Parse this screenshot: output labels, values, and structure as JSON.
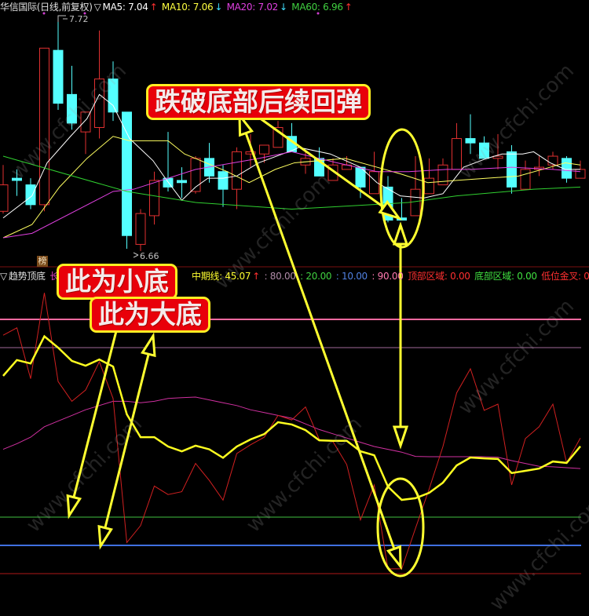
{
  "top_header": {
    "title": "华信国际(日线,前复权)",
    "marker": "▽",
    "ma5": {
      "label": "MA5: 7.04",
      "arrow": "↑",
      "color": "#ffffff",
      "arrow_color": "#ff3030"
    },
    "ma10": {
      "label": "MA10: 7.06",
      "arrow": "↓",
      "color": "#ffff40",
      "arrow_color": "#40e0ff"
    },
    "ma20": {
      "label": "MA20: 7.02",
      "arrow": "↓",
      "color": "#e040e0",
      "arrow_color": "#40e0ff"
    },
    "ma60": {
      "label": "MA60: 6.96",
      "arrow": "↑",
      "color": "#40d040",
      "arrow_color": "#ff3030"
    }
  },
  "price_labels": {
    "high": "7.72",
    "low": "6.66"
  },
  "badge": "榜",
  "lower_header": {
    "marker": "▽",
    "name": "趋势顶底",
    "long_label": "长",
    "mid_label": "中期线: 45.07",
    "mid_arrow": "↑",
    "l80": ": 80.00",
    "l20": ": 20.00",
    "l10": ": 10.00",
    "l90": ": 90.00",
    "top_zone": "顶部区域: 0.00",
    "bottom_zone": "底部区域: 0.00",
    "low_cross": "低位金叉: 0.00"
  },
  "annotations": {
    "rebound": "跌破底部后续回弹",
    "small_bottom": "此为小底",
    "big_bottom": "此为大底"
  },
  "watermark": "www.cfchi.com",
  "colors": {
    "up": "#e03030",
    "down": "#54ffff",
    "background": "#000000",
    "annotation": "#ffff30"
  },
  "chart_data": [
    {
      "type": "candlestick",
      "title": "华信国际(日线,前复权)",
      "ylim": [
        6.62,
        7.8
      ],
      "candles": [
        [
          6.84,
          7.05,
          6.83,
          6.96
        ],
        [
          6.99,
          7.03,
          6.91,
          6.98
        ],
        [
          6.96,
          6.99,
          6.85,
          6.87
        ],
        [
          6.87,
          7.58,
          6.84,
          7.58
        ],
        [
          7.57,
          7.72,
          7.3,
          7.33
        ],
        [
          7.37,
          7.5,
          7.21,
          7.24
        ],
        [
          7.2,
          7.29,
          7.1,
          7.29
        ],
        [
          7.22,
          7.66,
          7.17,
          7.44
        ],
        [
          7.44,
          7.52,
          7.25,
          7.29
        ],
        [
          7.29,
          7.29,
          6.67,
          6.73
        ],
        [
          6.69,
          6.85,
          6.66,
          6.83
        ],
        [
          6.82,
          7.02,
          6.78,
          6.98
        ],
        [
          6.99,
          7.2,
          6.93,
          6.95
        ],
        [
          6.98,
          7.04,
          6.9,
          6.97
        ],
        [
          6.93,
          7.09,
          6.92,
          7.08
        ],
        [
          7.08,
          7.15,
          6.97,
          7.0
        ],
        [
          7.02,
          7.05,
          6.86,
          6.94
        ],
        [
          6.94,
          7.13,
          6.85,
          7.11
        ],
        [
          7.1,
          7.19,
          7.04,
          7.11
        ],
        [
          7.1,
          7.14,
          7.06,
          7.14
        ],
        [
          7.13,
          7.25,
          7.13,
          7.22
        ],
        [
          7.18,
          7.24,
          7.11,
          7.11
        ],
        [
          7.05,
          7.11,
          7.01,
          7.08
        ],
        [
          7.08,
          7.13,
          7.0,
          7.0
        ],
        [
          6.98,
          7.08,
          6.98,
          7.05
        ],
        [
          7.03,
          7.09,
          7.03,
          7.05
        ],
        [
          7.04,
          7.04,
          6.9,
          6.95
        ],
        [
          6.92,
          7.11,
          6.92,
          7.02
        ],
        [
          6.95,
          7.0,
          6.79,
          6.8
        ],
        [
          6.81,
          6.9,
          6.8,
          6.8
        ],
        [
          6.82,
          7.09,
          6.82,
          6.94
        ],
        [
          6.92,
          7.08,
          6.92,
          6.99
        ],
        [
          6.96,
          7.08,
          6.96,
          7.05
        ],
        [
          7.03,
          7.24,
          7.03,
          7.17
        ],
        [
          7.17,
          7.28,
          7.1,
          7.15
        ],
        [
          7.15,
          7.18,
          7.08,
          7.08
        ],
        [
          7.08,
          7.19,
          7.03,
          7.09
        ],
        [
          7.11,
          7.14,
          6.92,
          6.95
        ],
        [
          6.94,
          7.07,
          6.94,
          7.03
        ],
        [
          7.03,
          7.09,
          7.0,
          7.04
        ],
        [
          7.05,
          7.11,
          7.03,
          7.09
        ],
        [
          7.08,
          7.09,
          6.97,
          6.99
        ],
        [
          6.99,
          7.07,
          6.99,
          7.03
        ]
      ],
      "candle_fields": [
        "open",
        "high",
        "low",
        "close"
      ],
      "series": [
        {
          "name": "MA5",
          "color": "#ffffff",
          "points": [
            [
              0,
              6.81
            ],
            [
              2.1,
              6.91
            ],
            [
              3.2,
              7.06
            ],
            [
              4.9,
              7.18
            ],
            [
              6.1,
              7.26
            ],
            [
              7,
              7.37
            ],
            [
              8,
              7.32
            ],
            [
              9.2,
              7.17
            ],
            [
              10.9,
              7.07
            ],
            [
              11.8,
              6.99
            ],
            [
              13,
              6.89
            ],
            [
              14,
              6.95
            ],
            [
              14.9,
              6.99
            ],
            [
              16,
              6.99
            ],
            [
              17,
              7.0
            ],
            [
              18.6,
              7.06
            ],
            [
              21.2,
              7.12
            ],
            [
              21.5,
              7.13
            ],
            [
              23.8,
              7.1
            ],
            [
              26,
              7.04
            ],
            [
              27.2,
              6.97
            ],
            [
              28.9,
              6.91
            ],
            [
              30.6,
              6.9
            ],
            [
              32,
              6.92
            ],
            [
              33.5,
              7.04
            ],
            [
              35.2,
              7.08
            ],
            [
              36.3,
              7.1
            ],
            [
              37.8,
              7.1
            ],
            [
              38.6,
              7.11
            ],
            [
              39.8,
              7.06
            ],
            [
              40.9,
              7.03
            ],
            [
              42,
              7.03
            ]
          ]
        },
        {
          "name": "MA10",
          "color": "#ffff60",
          "points": [
            [
              0,
              6.72
            ],
            [
              2.1,
              6.78
            ],
            [
              4.1,
              6.95
            ],
            [
              6.1,
              7.08
            ],
            [
              8,
              7.18
            ],
            [
              9.2,
              7.16
            ],
            [
              12,
              7.16
            ],
            [
              13.2,
              7.1
            ],
            [
              16.3,
              7.02
            ],
            [
              17.9,
              6.97
            ],
            [
              19.8,
              7.03
            ],
            [
              21.2,
              7.06
            ],
            [
              24.9,
              7.08
            ],
            [
              27.2,
              7.04
            ],
            [
              28.9,
              7.01
            ],
            [
              30.9,
              6.97
            ],
            [
              32.9,
              6.98
            ],
            [
              35.2,
              6.99
            ],
            [
              37.5,
              7.0
            ],
            [
              39.8,
              7.04
            ],
            [
              40.9,
              7.06
            ],
            [
              42,
              7.05
            ]
          ]
        },
        {
          "name": "MA20",
          "color": "#e040e0",
          "points": [
            [
              0,
              6.72
            ],
            [
              2.1,
              6.74
            ],
            [
              8,
              6.93
            ],
            [
              9.5,
              6.94
            ],
            [
              14,
              7.03
            ],
            [
              18.6,
              7.08
            ],
            [
              21,
              7.11
            ],
            [
              24.3,
              7.06
            ],
            [
              27.2,
              7.02
            ],
            [
              29.5,
              7.02
            ],
            [
              32.3,
              7.03
            ],
            [
              34,
              7.03
            ],
            [
              37,
              7.04
            ],
            [
              40,
              7.03
            ],
            [
              42,
              7.02
            ]
          ]
        },
        {
          "name": "MA60",
          "color": "#30d030",
          "points": [
            [
              0,
              7.09
            ],
            [
              9,
              6.93
            ],
            [
              14,
              6.88
            ],
            [
              21,
              6.85
            ],
            [
              24,
              6.86
            ],
            [
              29.5,
              6.88
            ],
            [
              33,
              6.91
            ],
            [
              38.6,
              6.94
            ],
            [
              42,
              6.95
            ]
          ]
        }
      ]
    },
    {
      "type": "line",
      "title": "趋势顶底",
      "ylim": [
        0,
        100
      ],
      "reference_lines": [
        {
          "value": 90,
          "color": "#ff6aa0"
        },
        {
          "value": 80,
          "color": "#a06a9a"
        },
        {
          "value": 20,
          "color": "#40c040"
        },
        {
          "value": 10,
          "color": "#4070e0"
        },
        {
          "value": 0,
          "color": "#b01818"
        }
      ],
      "series": [
        {
          "color": "#d02020",
          "values": [
            84.4,
            87,
            69,
            99.4,
            68,
            61,
            65,
            75,
            62,
            11,
            17,
            31,
            28,
            29,
            39,
            33,
            26,
            42.5,
            45.6,
            48.3,
            56,
            54.4,
            59,
            47.5,
            46.7,
            38.6,
            19,
            31.4,
            1.7,
            1.7,
            16,
            30,
            45,
            64,
            72.5,
            57.8,
            60,
            31.4,
            47.8,
            52,
            60,
            39.2,
            48
          ]
        },
        {
          "name": "中期线",
          "color": "#ffff20",
          "values": [
            70,
            75.6,
            74.4,
            84,
            80,
            75.3,
            73.6,
            75.8,
            73.3,
            56.4,
            48.3,
            48.3,
            45,
            43.3,
            45.3,
            44,
            41,
            45,
            47.5,
            49.4,
            53.6,
            52.8,
            50.8,
            47.2,
            47,
            47,
            43.3,
            41.9,
            30.8,
            26.1,
            26.7,
            28.6,
            32.2,
            38.3,
            41.1,
            40.8,
            40.6,
            35.6,
            36.4,
            37.2,
            39.7,
            39.2,
            45.07
          ]
        },
        {
          "name": "长",
          "color": "#d030a0",
          "values": [
            44,
            46,
            48.3,
            52,
            54,
            56,
            58,
            59.5,
            61,
            61,
            60.5,
            61,
            62,
            62.3,
            62.5,
            61.5,
            60.5,
            59.5,
            58,
            57,
            56,
            55,
            53,
            51,
            49.5,
            48,
            46.5,
            45,
            44,
            43,
            41.5,
            41.4,
            41.4,
            41.4,
            41.4,
            41.4,
            41.2,
            40,
            39,
            38,
            37.8,
            37.5,
            37.2
          ]
        }
      ]
    }
  ]
}
